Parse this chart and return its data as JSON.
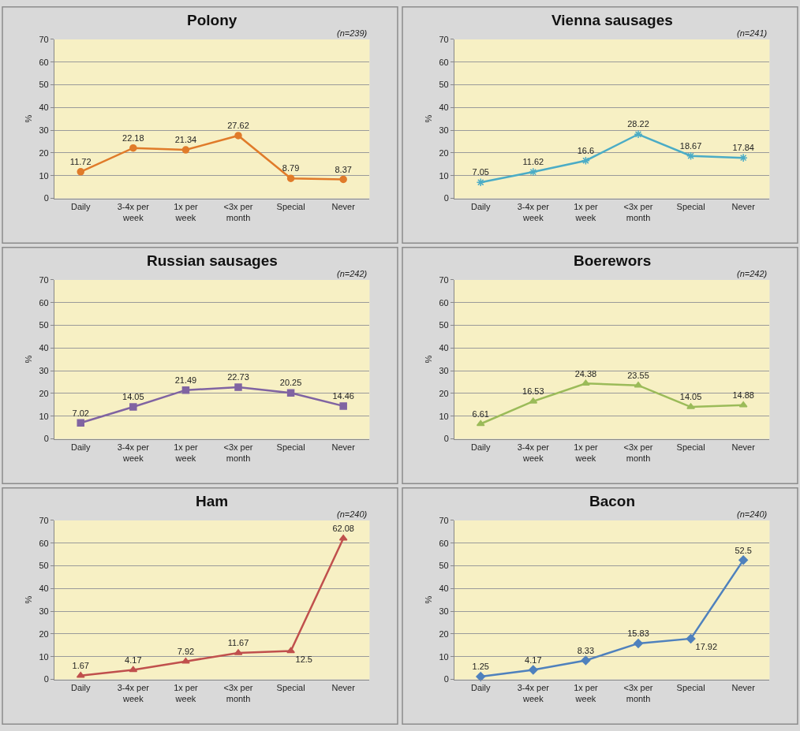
{
  "chart_data": [
    {
      "type": "line",
      "title": "Polony",
      "annotations": [
        "(n=239)"
      ],
      "ylabel": "%",
      "categories": [
        "Daily",
        "3-4x per week",
        "1x per week",
        "<3x per month",
        "Special",
        "Never"
      ],
      "series": [
        {
          "color": "#e07b2a",
          "values": [
            11.72,
            22.18,
            21.34,
            27.62,
            8.79,
            8.37
          ]
        }
      ],
      "ylim": [
        0,
        70
      ],
      "yticks": [
        0,
        10,
        20,
        30,
        40,
        50,
        60,
        70
      ],
      "grid": "y",
      "marker": "circle",
      "data_labels": true
    },
    {
      "type": "line",
      "title": "Vienna sausages",
      "annotations": [
        "(n=241)"
      ],
      "ylabel": "%",
      "categories": [
        "Daily",
        "3-4x per week",
        "1x per week",
        "<3x per month",
        "Special",
        "Never"
      ],
      "series": [
        {
          "color": "#4bacc6",
          "values": [
            7.05,
            11.62,
            16.6,
            28.22,
            18.67,
            17.84
          ]
        }
      ],
      "ylim": [
        0,
        70
      ],
      "yticks": [
        0,
        10,
        20,
        30,
        40,
        50,
        60,
        70
      ],
      "grid": "y",
      "marker": "cross",
      "data_labels": true
    },
    {
      "type": "line",
      "title": "Russian sausages",
      "annotations": [
        "(n=242)"
      ],
      "ylabel": "%",
      "categories": [
        "Daily",
        "3-4x per week",
        "1x per week",
        "<3x per month",
        "Special",
        "Never"
      ],
      "series": [
        {
          "color": "#8064a2",
          "values": [
            7.02,
            14.05,
            21.49,
            22.73,
            20.25,
            14.46
          ]
        }
      ],
      "ylim": [
        0,
        70
      ],
      "yticks": [
        0,
        10,
        20,
        30,
        40,
        50,
        60,
        70
      ],
      "grid": "y",
      "marker": "square",
      "data_labels": true
    },
    {
      "type": "line",
      "title": "Boerewors",
      "annotations": [
        "(n=242)"
      ],
      "ylabel": "%",
      "categories": [
        "Daily",
        "3-4x per week",
        "1x per week",
        "<3x per month",
        "Special",
        "Never"
      ],
      "series": [
        {
          "color": "#9bbb59",
          "values": [
            6.61,
            16.53,
            24.38,
            23.55,
            14.05,
            14.88
          ]
        }
      ],
      "ylim": [
        0,
        70
      ],
      "yticks": [
        0,
        10,
        20,
        30,
        40,
        50,
        60,
        70
      ],
      "grid": "y",
      "marker": "triangle",
      "data_labels": true
    },
    {
      "type": "line",
      "title": "Ham",
      "annotations": [
        "(n=240)"
      ],
      "ylabel": "%",
      "categories": [
        "Daily",
        "3-4x per week",
        "1x per week",
        "<3x per month",
        "Special",
        "Never"
      ],
      "series": [
        {
          "color": "#c0504d",
          "values": [
            1.67,
            4.17,
            7.92,
            11.67,
            12.5,
            62.08
          ]
        }
      ],
      "ylim": [
        0,
        70
      ],
      "yticks": [
        0,
        10,
        20,
        30,
        40,
        50,
        60,
        70
      ],
      "grid": "y",
      "marker": "triangle",
      "data_labels": true
    },
    {
      "type": "line",
      "title": "Bacon",
      "annotations": [
        "(n=240)"
      ],
      "ylabel": "%",
      "categories": [
        "Daily",
        "3-4x per week",
        "1x per week",
        "<3x per month",
        "Special",
        "Never"
      ],
      "series": [
        {
          "color": "#4f81bd",
          "values": [
            1.25,
            4.17,
            8.33,
            15.83,
            17.92,
            52.5
          ]
        }
      ],
      "ylim": [
        0,
        70
      ],
      "yticks": [
        0,
        10,
        20,
        30,
        40,
        50,
        60,
        70
      ],
      "grid": "y",
      "marker": "diamond",
      "data_labels": true
    }
  ]
}
